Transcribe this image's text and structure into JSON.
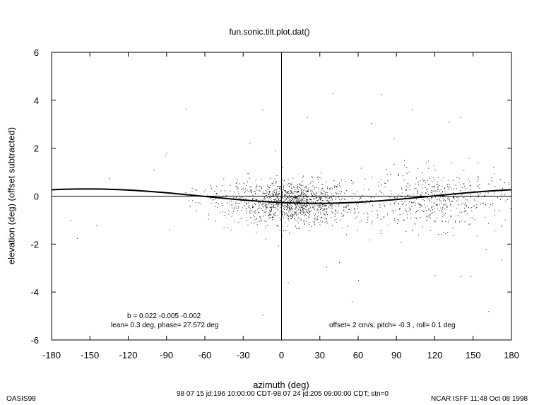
{
  "chart_data": {
    "type": "scatter",
    "title": "fun.sonic.tilt.plot.dat()",
    "xlabel": "azimuth (deg)",
    "ylabel": "elevation (deg)  (offset subtracted)",
    "xlim": [
      -180,
      180
    ],
    "ylim": [
      -6,
      6
    ],
    "xticks": [
      "-180",
      "-150",
      "-120",
      "-90",
      "-60",
      "-30",
      "0",
      "30",
      "60",
      "90",
      "120",
      "150",
      "180"
    ],
    "yticks": [
      "6",
      "4",
      "2",
      "0",
      "-2",
      "-4",
      "-6"
    ],
    "grid": false,
    "zero_lines": true,
    "fit_curve": {
      "name": "tilt fit",
      "amplitude_deg": 0.3,
      "phase_deg": 27.572,
      "note_function": "elevation = -lean * cos(azimuth - phase)"
    },
    "point_clusters": [
      {
        "center_az": 10,
        "spread_az": 22,
        "center_el": -0.25,
        "spread_el": 0.45,
        "count": 1100
      },
      {
        "center_az": 125,
        "spread_az": 25,
        "center_el": -0.15,
        "spread_el": 0.6,
        "count": 420
      },
      {
        "center_az": 80,
        "spread_az": 20,
        "center_el": -0.3,
        "spread_el": 0.7,
        "count": 120
      },
      {
        "center_az": -35,
        "spread_az": 20,
        "center_el": -0.1,
        "spread_el": 0.5,
        "count": 110
      }
    ],
    "outliers": [
      [
        -75,
        3.65
      ],
      [
        -90,
        1.8
      ],
      [
        -91,
        1.7
      ],
      [
        -135,
        0.75
      ],
      [
        -165,
        -1.0
      ],
      [
        -160,
        -1.75
      ],
      [
        -145,
        -1.2
      ],
      [
        -88,
        -1.4
      ],
      [
        -15,
        3.6
      ],
      [
        40,
        4.3
      ],
      [
        78,
        4.25
      ],
      [
        102,
        3.6
      ],
      [
        140,
        3.3
      ],
      [
        131,
        3.1
      ],
      [
        70,
        3.05
      ],
      [
        35,
        -2.95
      ],
      [
        45,
        -2.75
      ],
      [
        60,
        -3.5
      ],
      [
        55,
        -4.4
      ],
      [
        -15,
        -4.95
      ],
      [
        140,
        -3.35
      ],
      [
        148,
        -3.35
      ],
      [
        162,
        -4.8
      ],
      [
        172,
        -2.65
      ],
      [
        88,
        2.4
      ],
      [
        20,
        3.3
      ],
      [
        -100,
        1.1
      ],
      [
        160,
        -2.2
      ],
      [
        120,
        -3.3
      ],
      [
        5,
        -3.6
      ],
      [
        -5,
        1.9
      ],
      [
        -25,
        2.2
      ],
      [
        96,
        1.5
      ]
    ]
  },
  "annotations": {
    "left_line1": "b =  0.022 -0.005 -0.002",
    "left_line2": "lean= 0.3 deg, phase= 27.572 deg",
    "right_line": "offset= 2 cm/s; pitch= -0.3 , roll=  0.1 deg"
  },
  "footer": {
    "left": "OASIS98",
    "center": "98 07 15 jd:196 10:00:00 CDT-98 07 24 jd:205 09:00:00 CDT; stn=0",
    "right": "NCAR ISFF 11:48 Oct 08 1998"
  },
  "colors": {
    "ink": "#000000",
    "background": "#ffffff"
  }
}
